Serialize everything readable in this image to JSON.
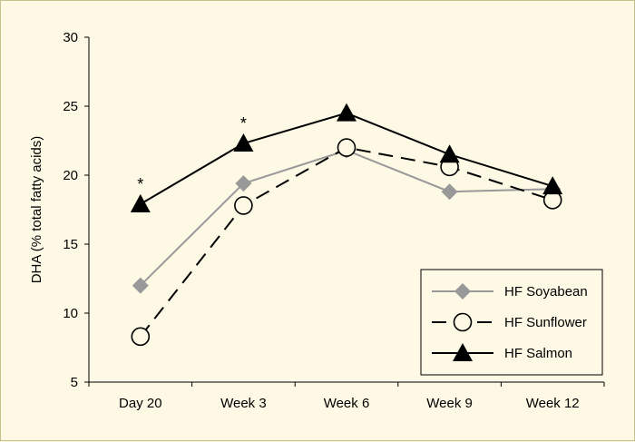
{
  "chart_data": {
    "type": "line",
    "categories": [
      "Day 20",
      "Week 3",
      "Week 6",
      "Week 9",
      "Week 12"
    ],
    "ylabel": "DHA (% total fatty acids)",
    "xlabel": "",
    "ylim": [
      5,
      30
    ],
    "yticks": [
      "5",
      "10",
      "15",
      "20",
      "25",
      "30"
    ],
    "grid": false,
    "legend_position": "bottom-right",
    "series": [
      {
        "name": "HF Soyabean",
        "values": [
          12.0,
          19.4,
          21.8,
          18.8,
          19.0
        ],
        "color": "#999999",
        "marker": "diamond",
        "line": "solid"
      },
      {
        "name": "HF Sunflower",
        "values": [
          8.3,
          17.8,
          22.0,
          20.6,
          18.2
        ],
        "color": "#000000",
        "marker": "open-circle",
        "line": "dashed"
      },
      {
        "name": "HF Salmon",
        "values": [
          17.9,
          22.3,
          24.5,
          21.5,
          19.2
        ],
        "color": "#000000",
        "marker": "triangle",
        "line": "solid"
      }
    ],
    "annotations": [
      {
        "text": "*",
        "category": "Day 20",
        "y": 19.6
      },
      {
        "text": "*",
        "category": "Week 3",
        "y": 24.0
      }
    ]
  }
}
